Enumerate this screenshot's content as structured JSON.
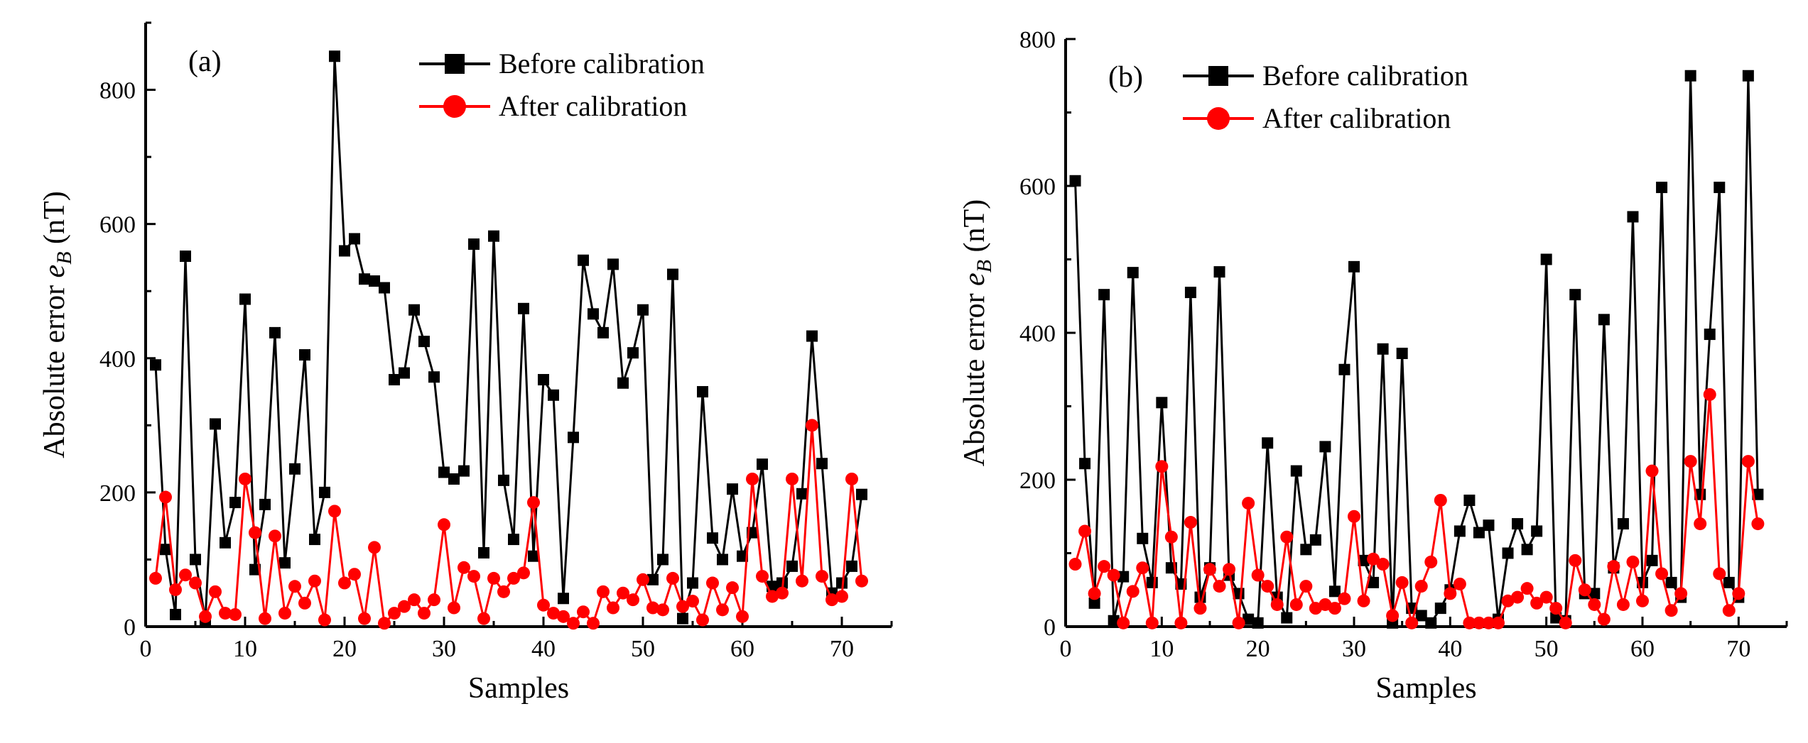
{
  "chart_data": [
    {
      "type": "line",
      "panel_label": "(a)",
      "xlabel": "Samples",
      "ylabel_main": "Absolute error ",
      "ylabel_symbol": "e",
      "ylabel_sub": "B",
      "ylabel_unit": " (nT)",
      "xlim": [
        0,
        75
      ],
      "ylim": [
        0,
        900
      ],
      "xticks": [
        0,
        10,
        20,
        30,
        40,
        50,
        60,
        70
      ],
      "yticks": [
        0,
        200,
        400,
        600,
        800
      ],
      "legend_position": "top-right",
      "series": [
        {
          "name": "Before calibration",
          "color": "#000000",
          "marker": "square",
          "x": [
            1,
            2,
            3,
            4,
            5,
            6,
            7,
            8,
            9,
            10,
            11,
            12,
            13,
            14,
            15,
            16,
            17,
            18,
            19,
            20,
            21,
            22,
            23,
            24,
            25,
            26,
            27,
            28,
            29,
            30,
            31,
            32,
            33,
            34,
            35,
            36,
            37,
            38,
            39,
            40,
            41,
            42,
            43,
            44,
            45,
            46,
            47,
            48,
            49,
            50,
            51,
            52,
            53,
            54,
            55,
            56,
            57,
            58,
            59,
            60,
            61,
            62,
            63,
            64,
            65,
            66,
            67,
            68,
            69,
            70,
            71,
            72
          ],
          "values": [
            390,
            115,
            18,
            552,
            100,
            10,
            302,
            125,
            185,
            488,
            85,
            182,
            438,
            95,
            235,
            405,
            130,
            200,
            850,
            560,
            578,
            518,
            515,
            505,
            368,
            378,
            472,
            425,
            372,
            230,
            220,
            232,
            570,
            110,
            582,
            218,
            130,
            474,
            105,
            368,
            345,
            42,
            282,
            546,
            466,
            438,
            540,
            363,
            408,
            472,
            70,
            100,
            525,
            12,
            65,
            350,
            132,
            100,
            205,
            105,
            140,
            242,
            60,
            65,
            90,
            198,
            433,
            243,
            50,
            65,
            90,
            197
          ]
        },
        {
          "name": "After calibration",
          "color": "#ff0000",
          "marker": "circle",
          "x": [
            1,
            2,
            3,
            4,
            5,
            6,
            7,
            8,
            9,
            10,
            11,
            12,
            13,
            14,
            15,
            16,
            17,
            18,
            19,
            20,
            21,
            22,
            23,
            24,
            25,
            26,
            27,
            28,
            29,
            30,
            31,
            32,
            33,
            34,
            35,
            36,
            37,
            38,
            39,
            40,
            41,
            42,
            43,
            44,
            45,
            46,
            47,
            48,
            49,
            50,
            51,
            52,
            53,
            54,
            55,
            56,
            57,
            58,
            59,
            60,
            61,
            62,
            63,
            64,
            65,
            66,
            67,
            68,
            69,
            70,
            71,
            72
          ],
          "values": [
            72,
            193,
            55,
            77,
            65,
            15,
            52,
            20,
            18,
            220,
            140,
            12,
            135,
            20,
            60,
            35,
            68,
            10,
            172,
            65,
            78,
            12,
            118,
            5,
            20,
            30,
            40,
            20,
            40,
            152,
            28,
            88,
            75,
            12,
            72,
            52,
            72,
            80,
            185,
            32,
            20,
            15,
            5,
            22,
            5,
            52,
            28,
            50,
            40,
            70,
            28,
            25,
            72,
            30,
            38,
            10,
            65,
            25,
            58,
            15,
            220,
            75,
            45,
            50,
            220,
            68,
            300,
            75,
            40,
            45,
            220,
            68
          ]
        }
      ]
    },
    {
      "type": "line",
      "panel_label": "(b)",
      "xlabel": "Samples",
      "ylabel_main": "Absolute error ",
      "ylabel_symbol": "e",
      "ylabel_sub": "B",
      "ylabel_unit": " (nT)",
      "xlim": [
        0,
        75
      ],
      "ylim": [
        0,
        800
      ],
      "xticks": [
        0,
        10,
        20,
        30,
        40,
        50,
        60,
        70
      ],
      "yticks": [
        0,
        200,
        400,
        600,
        800
      ],
      "legend_position": "top-right",
      "series": [
        {
          "name": "Before calibration",
          "color": "#000000",
          "marker": "square",
          "x": [
            1,
            2,
            3,
            4,
            5,
            6,
            7,
            8,
            9,
            10,
            11,
            12,
            13,
            14,
            15,
            16,
            17,
            18,
            19,
            20,
            21,
            22,
            23,
            24,
            25,
            26,
            27,
            28,
            29,
            30,
            31,
            32,
            33,
            34,
            35,
            36,
            37,
            38,
            39,
            40,
            41,
            42,
            43,
            44,
            45,
            46,
            47,
            48,
            49,
            50,
            51,
            52,
            53,
            54,
            55,
            56,
            57,
            58,
            59,
            60,
            61,
            62,
            63,
            64,
            65,
            66,
            67,
            68,
            69,
            70,
            71,
            72
          ],
          "values": [
            607,
            222,
            32,
            452,
            8,
            68,
            482,
            120,
            60,
            305,
            80,
            58,
            455,
            40,
            80,
            483,
            70,
            45,
            10,
            5,
            250,
            40,
            12,
            212,
            105,
            118,
            245,
            48,
            350,
            490,
            90,
            60,
            378,
            5,
            372,
            25,
            15,
            5,
            25,
            50,
            130,
            172,
            128,
            138,
            10,
            100,
            140,
            105,
            130,
            500,
            12,
            8,
            452,
            45,
            45,
            418,
            80,
            140,
            558,
            60,
            90,
            598,
            60,
            40,
            750,
            180,
            398,
            598,
            60,
            40,
            750,
            180
          ]
        },
        {
          "name": "After calibration",
          "color": "#ff0000",
          "marker": "circle",
          "x": [
            1,
            2,
            3,
            4,
            5,
            6,
            7,
            8,
            9,
            10,
            11,
            12,
            13,
            14,
            15,
            16,
            17,
            18,
            19,
            20,
            21,
            22,
            23,
            24,
            25,
            26,
            27,
            28,
            29,
            30,
            31,
            32,
            33,
            34,
            35,
            36,
            37,
            38,
            39,
            40,
            41,
            42,
            43,
            44,
            45,
            46,
            47,
            48,
            49,
            50,
            51,
            52,
            53,
            54,
            55,
            56,
            57,
            58,
            59,
            60,
            61,
            62,
            63,
            64,
            65,
            66,
            67,
            68,
            69,
            70,
            71,
            72
          ],
          "values": [
            85,
            130,
            45,
            82,
            70,
            5,
            48,
            80,
            5,
            218,
            122,
            5,
            142,
            25,
            78,
            55,
            78,
            5,
            168,
            70,
            55,
            30,
            122,
            30,
            55,
            25,
            30,
            25,
            38,
            150,
            35,
            92,
            85,
            15,
            60,
            5,
            55,
            88,
            172,
            45,
            58,
            5,
            5,
            5,
            5,
            35,
            40,
            52,
            32,
            40,
            25,
            5,
            90,
            50,
            30,
            10,
            82,
            30,
            88,
            35,
            212,
            72,
            22,
            45,
            225,
            140,
            316,
            72,
            22,
            45,
            225,
            140
          ]
        }
      ]
    }
  ]
}
